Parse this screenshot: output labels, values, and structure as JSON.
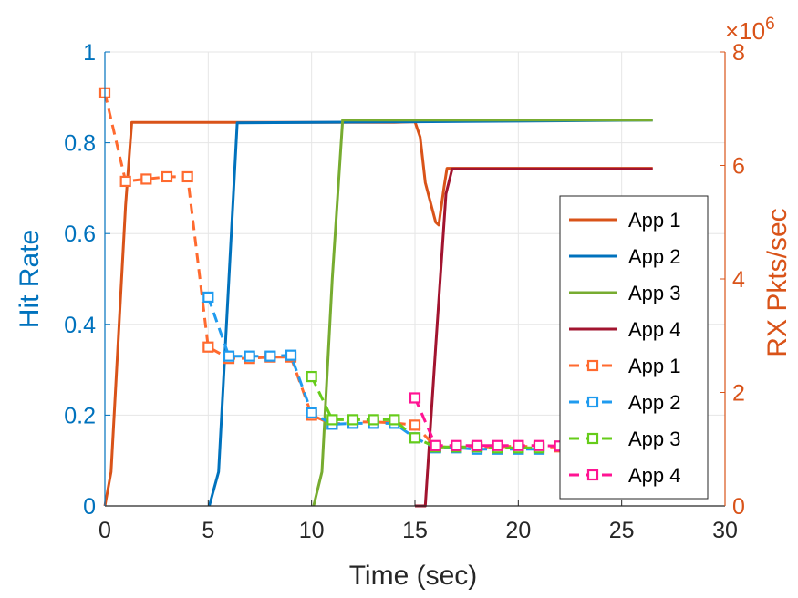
{
  "chart_data": {
    "type": "line",
    "xlabel": "Time (sec)",
    "ylabel_left": "Hit Rate",
    "ylabel_right": "RX Pkts/sec",
    "right_axis_exponent": "×10",
    "right_axis_exponent_power": "6",
    "xlim": [
      0,
      30
    ],
    "ylim_left": [
      0,
      1
    ],
    "ylim_right": [
      0,
      8
    ],
    "xticks": [
      "0",
      "5",
      "10",
      "15",
      "20",
      "25",
      "30"
    ],
    "yticks_left": [
      "0",
      "0.2",
      "0.4",
      "0.6",
      "0.8",
      "1"
    ],
    "yticks_right": [
      "0",
      "2",
      "4",
      "6",
      "8"
    ],
    "grid": true,
    "legend_position": "right-center",
    "left_axis_color": "#0072BD",
    "right_axis_color": "#D95319",
    "series": [
      {
        "name": "App 1",
        "axis": "right",
        "style": "solid",
        "color": "#D95319",
        "x": [
          0,
          0.3,
          1.0,
          1.3,
          5,
          10,
          14,
          15,
          15.25,
          15.5,
          16.0,
          16.15,
          16.4,
          16.55,
          17,
          20,
          26.5
        ],
        "y": [
          0,
          0.6,
          5.3,
          6.76,
          6.76,
          6.76,
          6.76,
          6.77,
          6.5,
          5.7,
          5.0,
          4.95,
          5.6,
          5.95,
          5.95,
          5.95,
          5.95
        ]
      },
      {
        "name": "App 2",
        "axis": "right",
        "style": "solid",
        "color": "#0072BD",
        "x": [
          5.05,
          5.5,
          6.0,
          6.4,
          10,
          15,
          20,
          26.5
        ],
        "y": [
          0,
          0.6,
          4.0,
          6.75,
          6.76,
          6.77,
          6.78,
          6.8
        ]
      },
      {
        "name": "App 3",
        "axis": "right",
        "style": "solid",
        "color": "#77AC30",
        "x": [
          10.1,
          10.5,
          11.0,
          11.5,
          15,
          20,
          26.5
        ],
        "y": [
          0,
          0.6,
          4.0,
          6.8,
          6.8,
          6.8,
          6.8
        ]
      },
      {
        "name": "App 4",
        "axis": "right",
        "style": "solid",
        "color": "#A2142F",
        "x": [
          15.0,
          15.5,
          16.0,
          16.5,
          16.8,
          20,
          26.5
        ],
        "y": [
          0,
          0,
          2.8,
          5.5,
          5.94,
          5.94,
          5.94
        ]
      },
      {
        "name": "App 1",
        "axis": "left",
        "style": "dashed-square",
        "color": "#FF6A2F",
        "x": [
          0,
          1,
          2,
          3,
          4,
          5,
          6,
          7,
          8,
          9,
          10,
          11,
          12,
          13,
          14,
          15,
          16,
          17,
          18,
          19,
          20,
          21,
          22
        ],
        "y": [
          0.91,
          0.715,
          0.72,
          0.725,
          0.725,
          0.35,
          0.325,
          0.325,
          0.328,
          0.328,
          0.2,
          0.18,
          0.185,
          0.185,
          0.183,
          0.178,
          0.13,
          0.13,
          0.13,
          0.13,
          0.132,
          0.13,
          0.13
        ]
      },
      {
        "name": "App 2",
        "axis": "left",
        "style": "dashed-square",
        "color": "#1F9BEF",
        "x": [
          5,
          6,
          7,
          8,
          9,
          10,
          11,
          12,
          13,
          14,
          15,
          16,
          17,
          18,
          19,
          20,
          21
        ],
        "y": [
          0.46,
          0.33,
          0.33,
          0.33,
          0.332,
          0.205,
          0.18,
          0.182,
          0.182,
          0.182,
          0.15,
          0.128,
          0.128,
          0.125,
          0.125,
          0.125,
          0.125
        ]
      },
      {
        "name": "App 3",
        "axis": "left",
        "style": "dashed-square",
        "color": "#66CC1A",
        "x": [
          10,
          11,
          12,
          13,
          14,
          15,
          16,
          17,
          18,
          19,
          20,
          21
        ],
        "y": [
          0.285,
          0.19,
          0.19,
          0.19,
          0.19,
          0.15,
          0.13,
          0.13,
          0.13,
          0.128,
          0.128,
          0.128
        ]
      },
      {
        "name": "App 4",
        "axis": "left",
        "style": "dashed-square",
        "color": "#FF1493",
        "x": [
          15,
          16,
          17,
          18,
          19,
          20,
          21,
          22
        ],
        "y": [
          0.238,
          0.133,
          0.133,
          0.133,
          0.133,
          0.133,
          0.133,
          0.132
        ]
      }
    ]
  }
}
